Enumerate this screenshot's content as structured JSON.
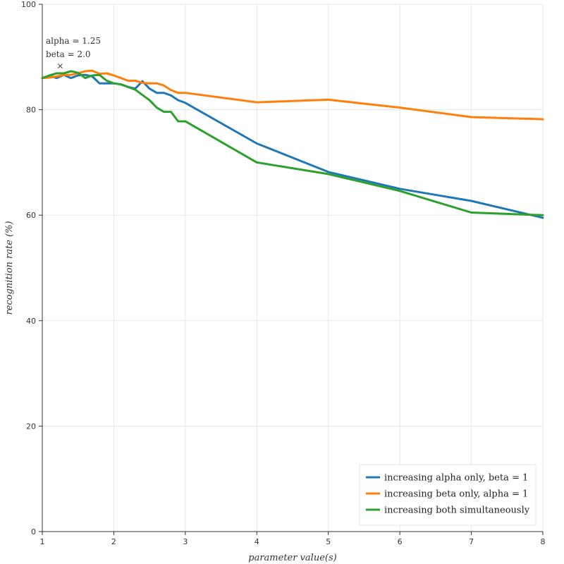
{
  "chart_data": {
    "type": "line",
    "title": "",
    "xlabel": "parameter value(s)",
    "ylabel": "recognition rate (%)",
    "xlim": [
      1,
      8
    ],
    "ylim": [
      0,
      100
    ],
    "xticks": [
      1,
      2,
      3,
      4,
      5,
      6,
      7,
      8
    ],
    "yticks": [
      0,
      20,
      40,
      60,
      80,
      100
    ],
    "grid": true,
    "legend_position": "bottom-right",
    "series": [
      {
        "name": "increasing alpha only, beta = 1",
        "color": "#1f77b4",
        "x": [
          1,
          1.1,
          1.2,
          1.3,
          1.4,
          1.5,
          1.6,
          1.7,
          1.8,
          1.9,
          2,
          2.1,
          2.2,
          2.3,
          2.4,
          2.5,
          2.6,
          2.7,
          2.8,
          2.9,
          3,
          4,
          5,
          6,
          7,
          8
        ],
        "y": [
          86,
          86.4,
          86,
          86.6,
          86,
          86.5,
          86.6,
          86.3,
          85,
          85,
          85,
          84.8,
          84.3,
          84,
          85.4,
          84,
          83.2,
          83.2,
          82.7,
          81.8,
          81.3,
          73.6,
          68.2,
          65,
          62.7,
          59.5
        ]
      },
      {
        "name": "increasing beta only, alpha = 1",
        "color": "#ff7f0e",
        "x": [
          1,
          1.1,
          1.2,
          1.3,
          1.4,
          1.5,
          1.6,
          1.7,
          1.8,
          1.9,
          2,
          2.1,
          2.2,
          2.3,
          2.4,
          2.5,
          2.6,
          2.7,
          2.8,
          2.9,
          3,
          4,
          5,
          6,
          7,
          8
        ],
        "y": [
          86,
          86.1,
          86.3,
          86.6,
          86.6,
          86.9,
          87.3,
          87.4,
          86.8,
          86.9,
          86.5,
          86,
          85.5,
          85.5,
          85.1,
          85,
          85,
          84.6,
          83.7,
          83.2,
          83.2,
          81.4,
          81.9,
          80.4,
          78.6,
          78.2
        ]
      },
      {
        "name": "increasing both simultaneously",
        "color": "#2ca02c",
        "x": [
          1,
          1.1,
          1.2,
          1.3,
          1.4,
          1.5,
          1.6,
          1.7,
          1.8,
          1.9,
          2,
          2.1,
          2.2,
          2.3,
          2.4,
          2.5,
          2.6,
          2.7,
          2.8,
          2.9,
          3,
          4,
          5,
          6,
          7,
          8
        ],
        "y": [
          86,
          86.5,
          86.9,
          86.9,
          87.3,
          87,
          86,
          86.5,
          86.6,
          85.5,
          85,
          84.8,
          84.3,
          83.8,
          82.8,
          81.8,
          80.4,
          79.6,
          79.6,
          77.8,
          77.8,
          70,
          67.8,
          64.6,
          60.5,
          60
        ]
      }
    ],
    "annotations": [
      {
        "x": 1.25,
        "y": 88.3,
        "marker": "×",
        "text_lines": [
          "alpha = 1.25",
          "beta = 2.0"
        ]
      }
    ]
  }
}
